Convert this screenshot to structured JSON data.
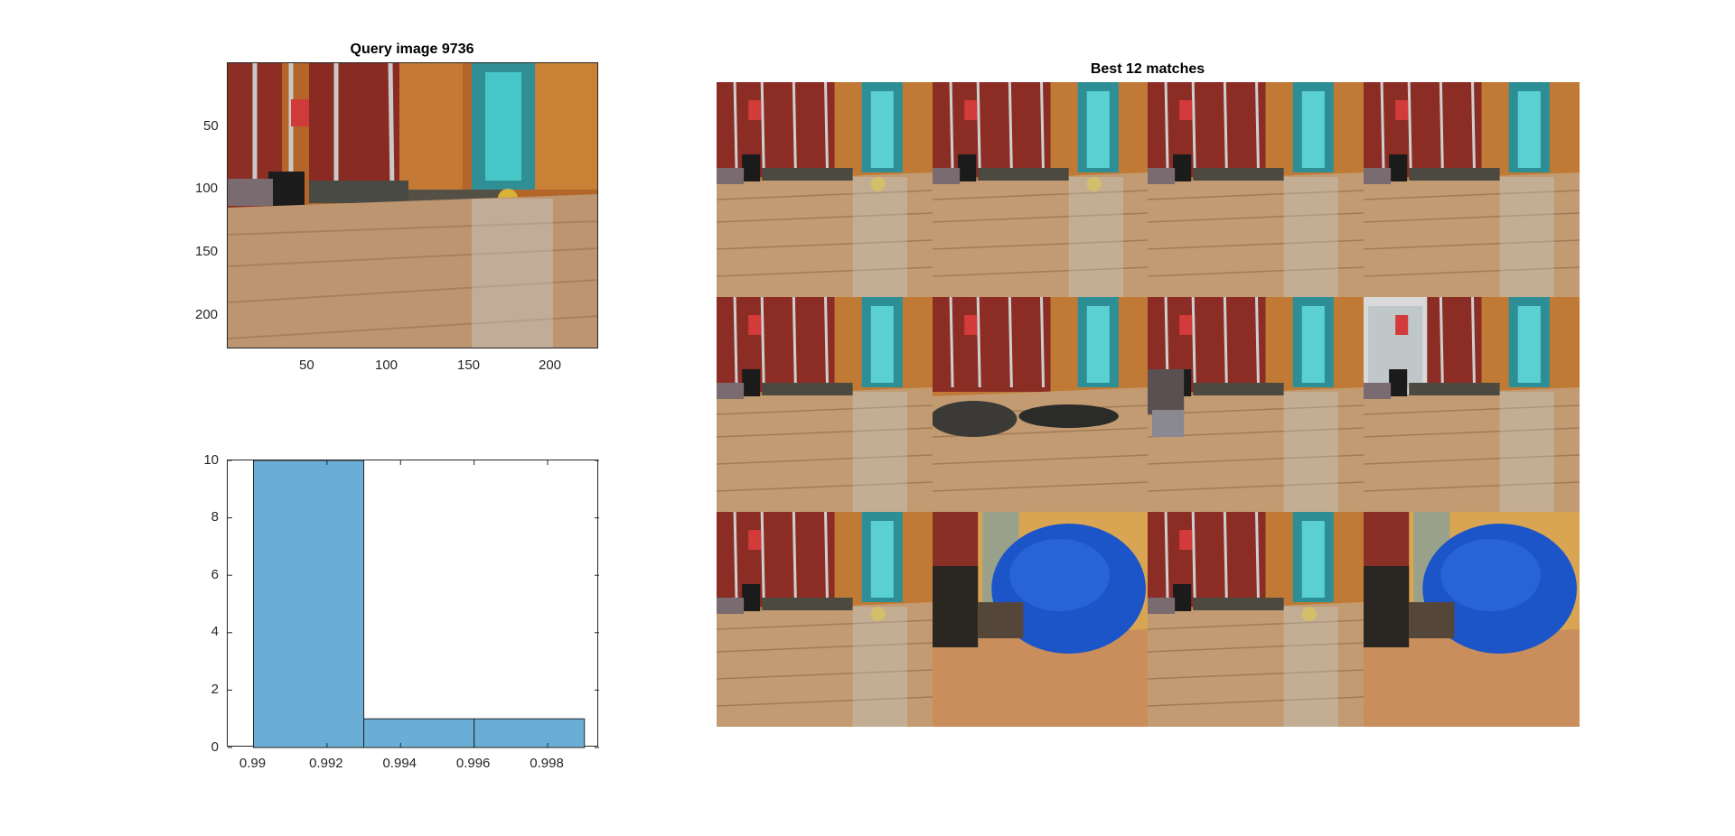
{
  "query_panel": {
    "title": "Query image 9736",
    "x_ticks": [
      "50",
      "100",
      "150",
      "200"
    ],
    "y_ticks": [
      "50",
      "100",
      "150",
      "200"
    ]
  },
  "matches_panel": {
    "title": "Best 12 matches",
    "rows": 3,
    "cols": 4,
    "tiles": [
      {
        "scene": "shelf-hallway-with-robot"
      },
      {
        "scene": "shelf-hallway-with-robot"
      },
      {
        "scene": "shelf-hallway-rack"
      },
      {
        "scene": "shelf-hallway-rack"
      },
      {
        "scene": "shelf-hallway-shoes"
      },
      {
        "scene": "shoes-closeup"
      },
      {
        "scene": "robot-closeup"
      },
      {
        "scene": "cabinet-rack"
      },
      {
        "scene": "shelf-hallway-with-robot"
      },
      {
        "scene": "blue-bag"
      },
      {
        "scene": "shelf-hallway-with-robot"
      },
      {
        "scene": "blue-bag"
      }
    ]
  },
  "chart_data": {
    "type": "bar",
    "title": "",
    "xlabel": "",
    "ylabel": "",
    "bin_edges": [
      0.99,
      0.993,
      0.996,
      0.999
    ],
    "values": [
      10,
      1,
      1
    ],
    "xlim": [
      0.9893,
      0.9994
    ],
    "ylim": [
      0,
      10
    ],
    "x_ticks": [
      "0.99",
      "0.992",
      "0.994",
      "0.996",
      "0.998"
    ],
    "y_ticks": [
      "0",
      "2",
      "4",
      "6",
      "8",
      "10"
    ],
    "bar_color": "#6AAED6",
    "edge_color": "#262626"
  }
}
